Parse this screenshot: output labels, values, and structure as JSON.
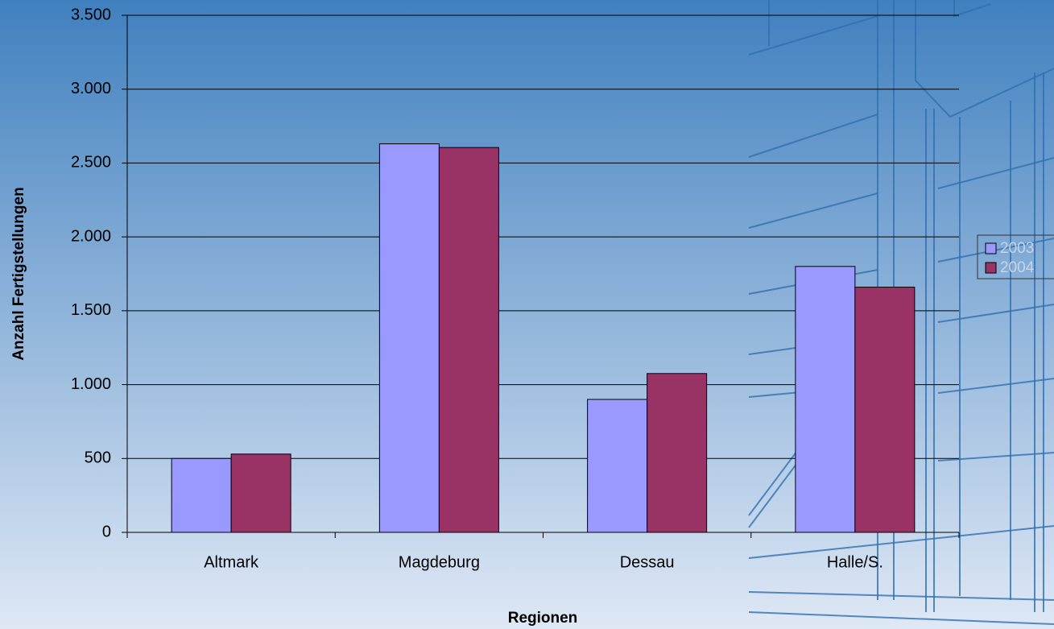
{
  "chart_data": {
    "type": "bar",
    "x_label": "Regionen",
    "y_label": "Anzahl Fertigstellungen",
    "categories": [
      "Altmark",
      "Magdeburg",
      "Dessau",
      "Halle/S."
    ],
    "series": [
      {
        "name": "2003",
        "color": "#9999ff",
        "values": [
          500,
          2630,
          900,
          1800
        ]
      },
      {
        "name": "2004",
        "color": "#993366",
        "values": [
          530,
          2605,
          1075,
          1660
        ]
      }
    ],
    "ylim": [
      0,
      3500
    ],
    "yticks": [
      0,
      500,
      {
        "value": 1000,
        "label": "1.000"
      },
      {
        "value": 1500,
        "label": "1.500"
      },
      {
        "value": 2000,
        "label": "2.000"
      },
      {
        "value": 2500,
        "label": "2.500"
      },
      {
        "value": 3000,
        "label": "3.000"
      },
      {
        "value": 3500,
        "label": "3.500"
      }
    ],
    "grid": true,
    "legend": "right"
  }
}
